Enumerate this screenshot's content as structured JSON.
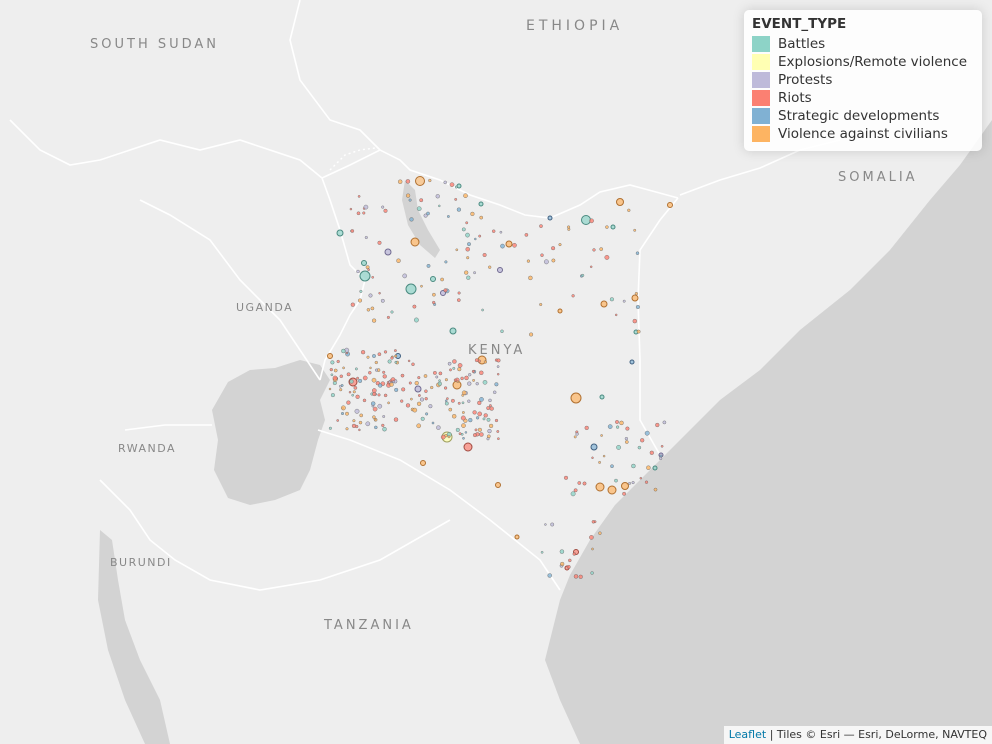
{
  "map": {
    "country_labels": [
      {
        "key": "ethiopia",
        "text": "ETHIOPIA"
      },
      {
        "key": "south_sudan",
        "text": "SOUTH SUDAN"
      },
      {
        "key": "somalia",
        "text": "SOMALIA"
      },
      {
        "key": "uganda",
        "text": "UGANDA"
      },
      {
        "key": "kenya",
        "text": "KENYA"
      },
      {
        "key": "rwanda",
        "text": "RWANDA"
      },
      {
        "key": "burundi",
        "text": "BURUNDI"
      },
      {
        "key": "tanzania",
        "text": "TANZANIA"
      }
    ]
  },
  "legend": {
    "title": "EVENT_TYPE",
    "items": [
      {
        "label": "Battles",
        "color": "#8dd3c7"
      },
      {
        "label": "Explosions/Remote violence",
        "color": "#ffffb3"
      },
      {
        "label": "Protests",
        "color": "#bebada"
      },
      {
        "label": "Riots",
        "color": "#fb8072"
      },
      {
        "label": "Strategic developments",
        "color": "#80b1d3"
      },
      {
        "label": "Violence against civilians",
        "color": "#fdb462"
      }
    ]
  },
  "attribution": {
    "link": "Leaflet",
    "text": "| Tiles © Esri — Esri, DeLorme, NAVTEQ"
  }
}
